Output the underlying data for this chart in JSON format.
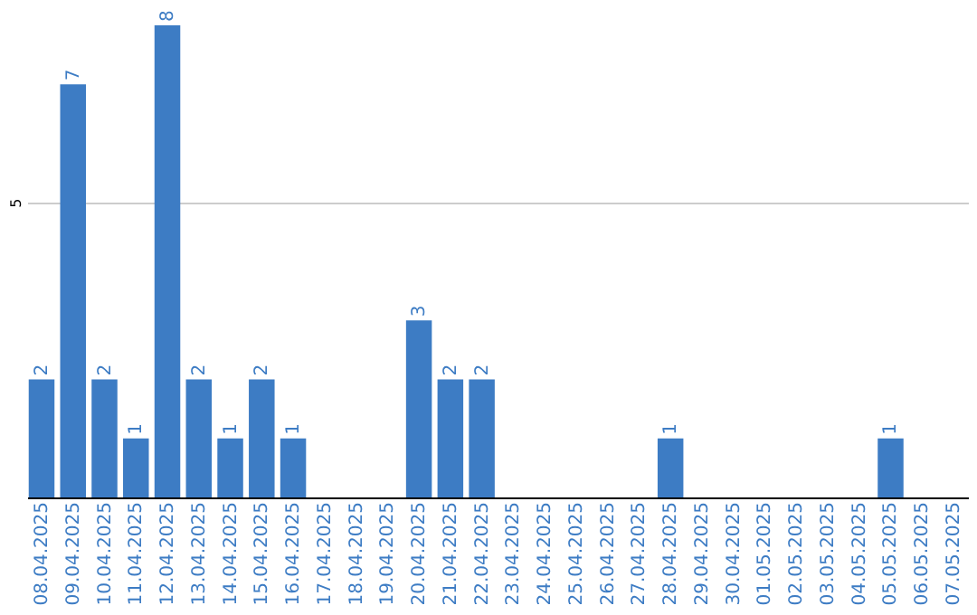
{
  "chart_data": {
    "type": "bar",
    "categories": [
      "08.04.2025",
      "09.04.2025",
      "10.04.2025",
      "11.04.2025",
      "12.04.2025",
      "13.04.2025",
      "14.04.2025",
      "15.04.2025",
      "16.04.2025",
      "17.04.2025",
      "18.04.2025",
      "19.04.2025",
      "20.04.2025",
      "21.04.2025",
      "22.04.2025",
      "23.04.2025",
      "24.04.2025",
      "25.04.2025",
      "26.04.2025",
      "27.04.2025",
      "28.04.2025",
      "29.04.2025",
      "30.04.2025",
      "01.05.2025",
      "02.05.2025",
      "03.05.2025",
      "04.05.2025",
      "05.05.2025",
      "06.05.2025",
      "07.05.2025"
    ],
    "values": [
      2,
      7,
      2,
      1,
      8,
      2,
      1,
      2,
      1,
      0,
      0,
      0,
      3,
      2,
      2,
      0,
      0,
      0,
      0,
      0,
      1,
      0,
      0,
      0,
      0,
      0,
      0,
      1,
      0,
      0
    ],
    "value_labels": [
      "2",
      "7",
      "2",
      "1",
      "8",
      "2",
      "1",
      "2",
      "1",
      null,
      null,
      null,
      "3",
      "2",
      "2",
      null,
      null,
      null,
      null,
      null,
      "1",
      null,
      null,
      null,
      null,
      null,
      null,
      "1",
      null,
      null
    ],
    "color": "#3d7cc4",
    "ylim": [
      0,
      8
    ],
    "yticks": [
      5
    ],
    "grid": "y"
  }
}
